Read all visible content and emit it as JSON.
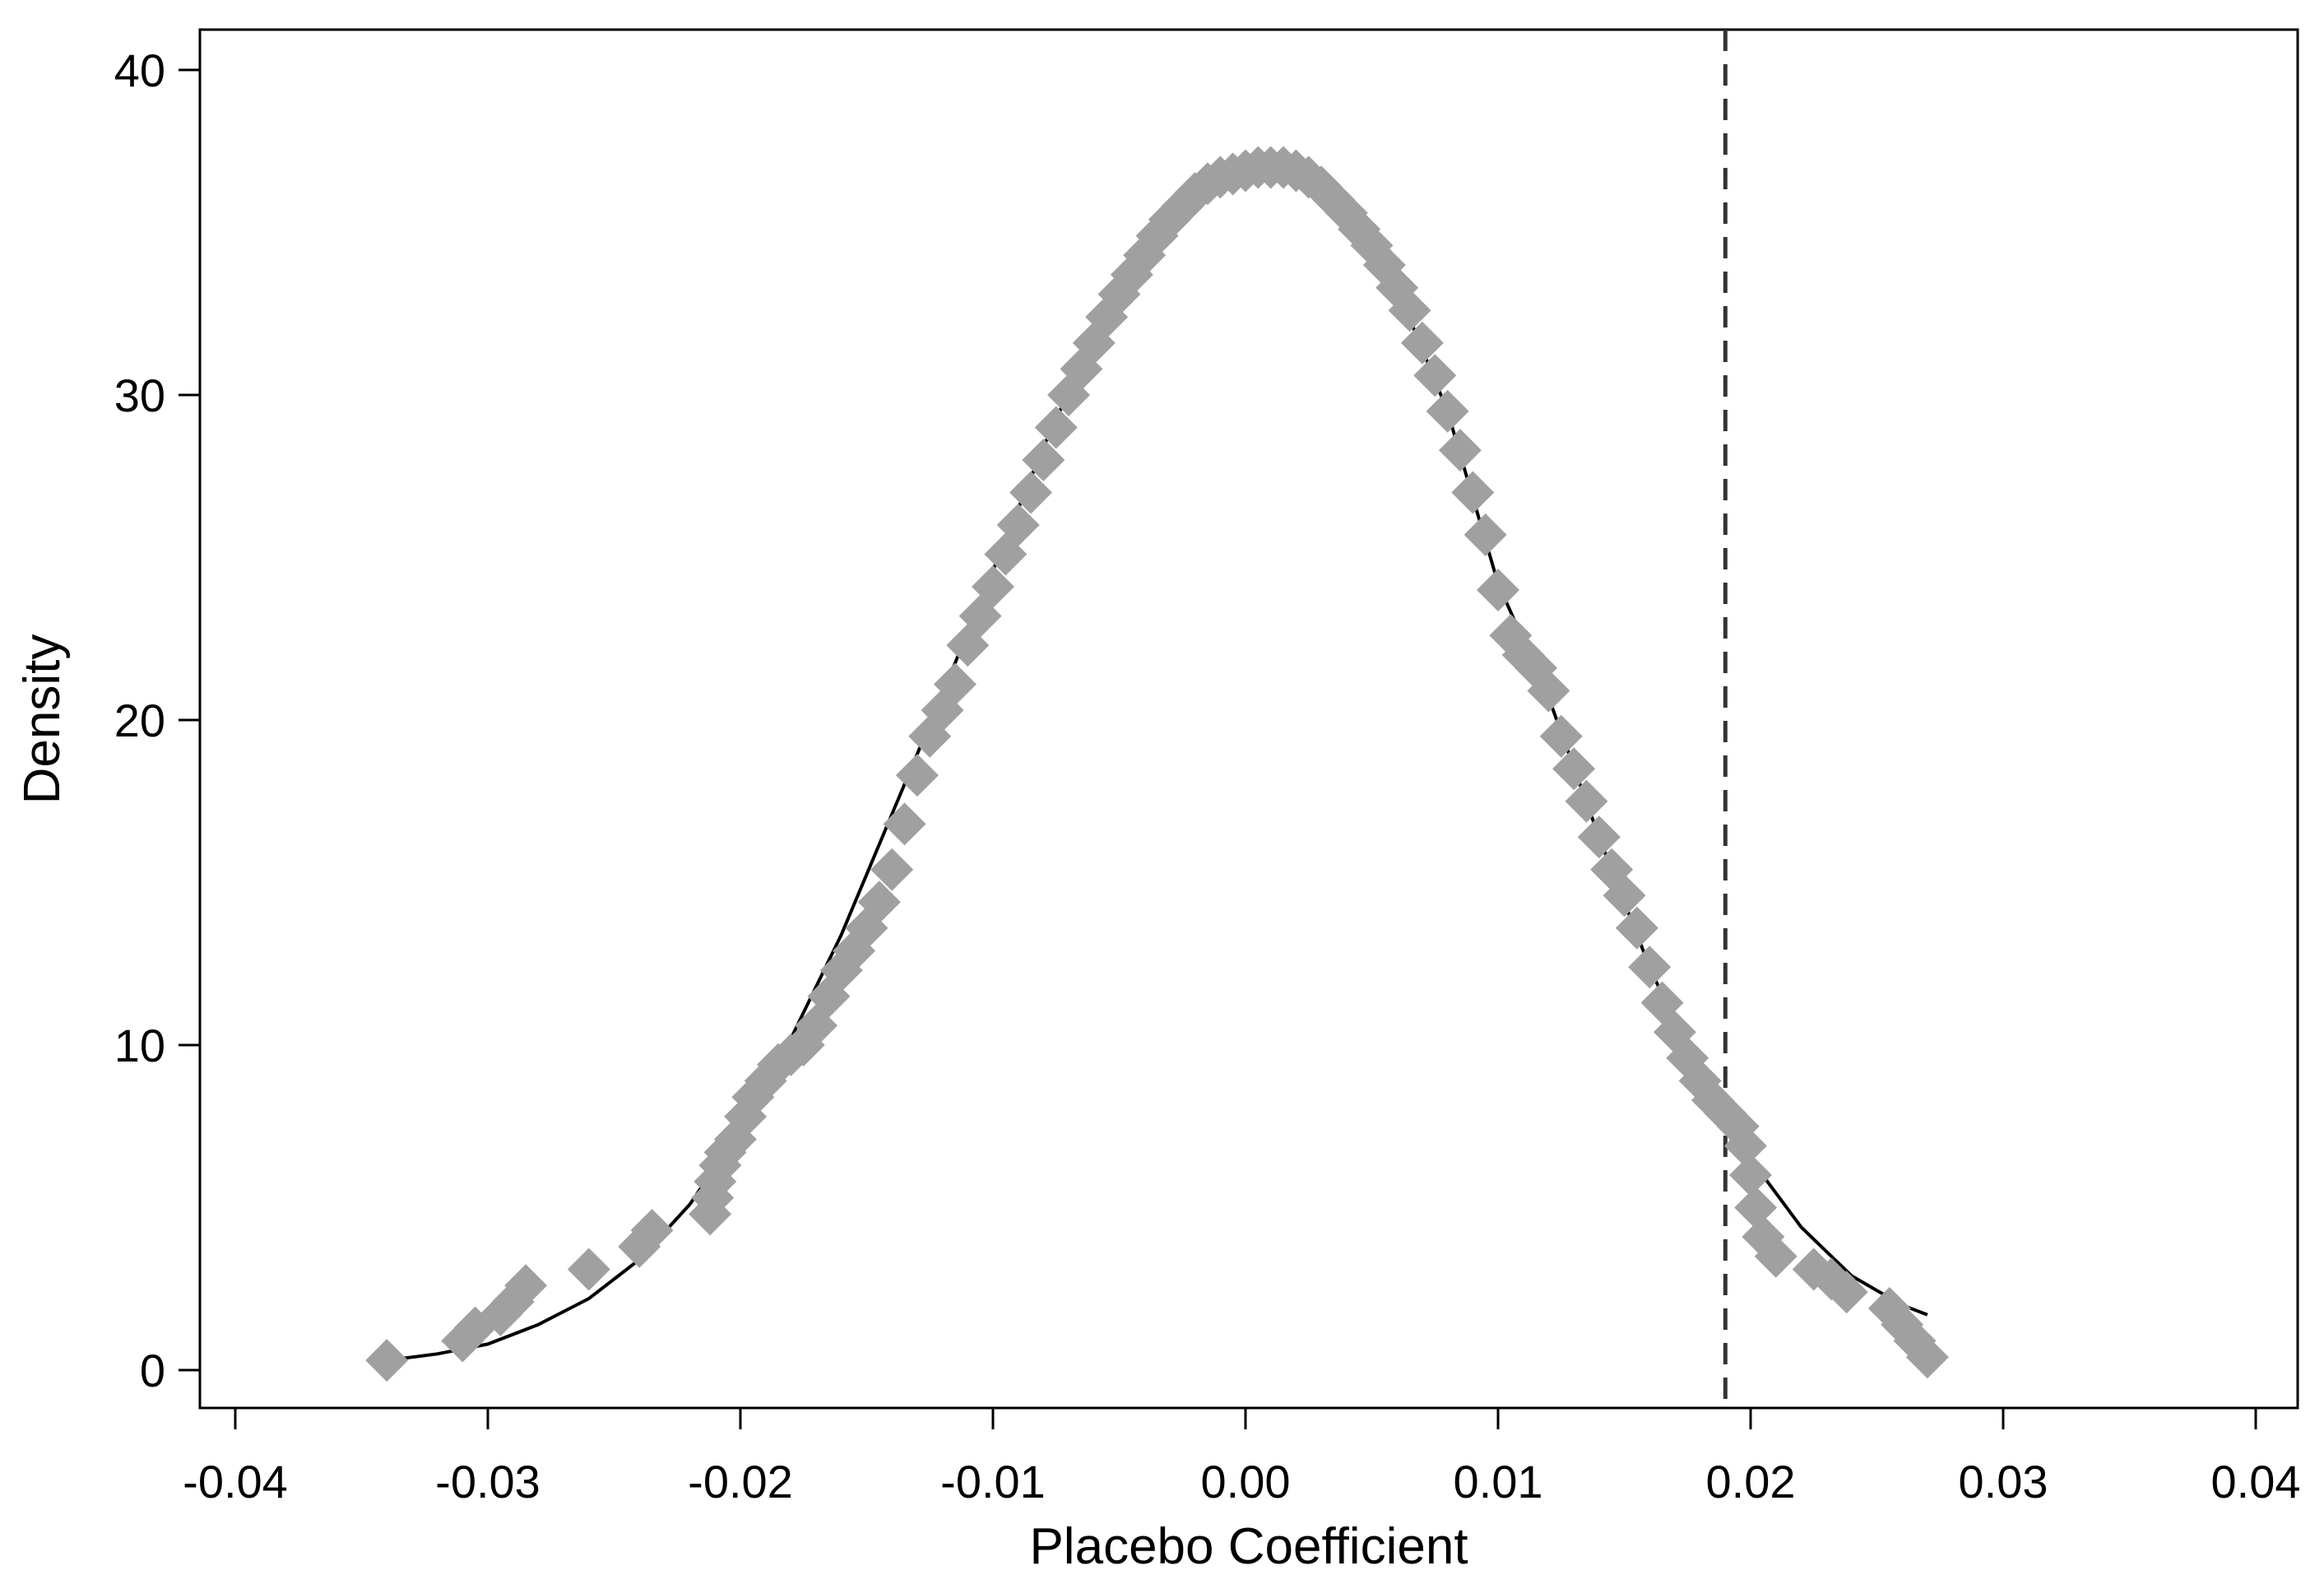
{
  "chart_data": {
    "type": "scatter",
    "xlabel": "Placebo Coefficient",
    "ylabel": "Density",
    "xlim": [
      -0.04,
      0.04
    ],
    "ylim": [
      0,
      40
    ],
    "xticks": [
      -0.04,
      -0.03,
      -0.02,
      -0.01,
      0.0,
      0.01,
      0.02,
      0.03,
      0.04
    ],
    "xtick_labels": [
      "-0.04",
      "-0.03",
      "-0.02",
      "-0.01",
      "0.00",
      "0.01",
      "0.02",
      "0.03",
      "0.04"
    ],
    "yticks": [
      0,
      10,
      20,
      30,
      40
    ],
    "ytick_labels": [
      "0",
      "10",
      "20",
      "30",
      "40"
    ],
    "grid": false,
    "reference_line": {
      "x": 0.019,
      "style": "dashed",
      "color": "#333333"
    },
    "series": [
      {
        "kind": "scatter",
        "marker": "diamond",
        "color": "#a0a0a0",
        "points": [
          [
            -0.034,
            0.3
          ],
          [
            -0.031,
            0.9
          ],
          [
            -0.0305,
            1.3
          ],
          [
            -0.0295,
            1.7
          ],
          [
            -0.029,
            2.1
          ],
          [
            -0.0285,
            2.6
          ],
          [
            -0.026,
            3.1
          ],
          [
            -0.024,
            3.8
          ],
          [
            -0.0235,
            4.3
          ],
          [
            -0.0212,
            4.8
          ],
          [
            -0.0211,
            5.3
          ],
          [
            -0.021,
            5.8
          ],
          [
            -0.0208,
            6.3
          ],
          [
            -0.0206,
            6.7
          ],
          [
            -0.0202,
            7.1
          ],
          [
            -0.0198,
            7.8
          ],
          [
            -0.0195,
            8.4
          ],
          [
            -0.019,
            8.9
          ],
          [
            -0.0185,
            9.4
          ],
          [
            -0.018,
            9.7
          ],
          [
            -0.0175,
            10.0
          ],
          [
            -0.017,
            10.6
          ],
          [
            -0.0165,
            11.5
          ],
          [
            -0.016,
            12.3
          ],
          [
            -0.0155,
            12.9
          ],
          [
            -0.015,
            13.6
          ],
          [
            -0.0145,
            14.4
          ],
          [
            -0.014,
            15.4
          ],
          [
            -0.0135,
            16.8
          ],
          [
            -0.013,
            18.3
          ],
          [
            -0.0125,
            19.5
          ],
          [
            -0.012,
            20.3
          ],
          [
            -0.0115,
            21.1
          ],
          [
            -0.011,
            22.3
          ],
          [
            -0.0105,
            23.2
          ],
          [
            -0.01,
            24.1
          ],
          [
            -0.0095,
            25.1
          ],
          [
            -0.009,
            26.0
          ],
          [
            -0.0085,
            27.0
          ],
          [
            -0.008,
            28.0
          ],
          [
            -0.0075,
            29.0
          ],
          [
            -0.007,
            30.0
          ],
          [
            -0.0065,
            30.8
          ],
          [
            -0.006,
            31.6
          ],
          [
            -0.0055,
            32.4
          ],
          [
            -0.005,
            33.1
          ],
          [
            -0.0045,
            33.7
          ],
          [
            -0.004,
            34.3
          ],
          [
            -0.0035,
            34.9
          ],
          [
            -0.003,
            35.4
          ],
          [
            -0.0025,
            35.8
          ],
          [
            -0.002,
            36.2
          ],
          [
            -0.0015,
            36.5
          ],
          [
            -0.001,
            36.7
          ],
          [
            -0.0005,
            36.8
          ],
          [
            0.0,
            36.9
          ],
          [
            0.0005,
            37.0
          ],
          [
            0.001,
            37.0
          ],
          [
            0.0015,
            37.0
          ],
          [
            0.002,
            36.9
          ],
          [
            0.0025,
            36.7
          ],
          [
            0.003,
            36.4
          ],
          [
            0.0035,
            36.0
          ],
          [
            0.004,
            35.6
          ],
          [
            0.0045,
            35.1
          ],
          [
            0.005,
            34.6
          ],
          [
            0.0055,
            34.0
          ],
          [
            0.006,
            33.3
          ],
          [
            0.0065,
            32.6
          ],
          [
            0.007,
            31.6
          ],
          [
            0.0075,
            30.6
          ],
          [
            0.008,
            29.5
          ],
          [
            0.0085,
            28.3
          ],
          [
            0.009,
            27.0
          ],
          [
            0.0095,
            25.7
          ],
          [
            0.01,
            24.0
          ],
          [
            0.0105,
            22.6
          ],
          [
            0.011,
            22.0
          ],
          [
            0.0115,
            21.6
          ],
          [
            0.012,
            20.9
          ],
          [
            0.0125,
            19.5
          ],
          [
            0.013,
            18.5
          ],
          [
            0.0135,
            17.5
          ],
          [
            0.014,
            16.4
          ],
          [
            0.0145,
            15.4
          ],
          [
            0.015,
            14.6
          ],
          [
            0.0155,
            13.6
          ],
          [
            0.016,
            12.4
          ],
          [
            0.0165,
            11.3
          ],
          [
            0.017,
            10.4
          ],
          [
            0.0175,
            9.6
          ],
          [
            0.018,
            8.9
          ],
          [
            0.0185,
            8.3
          ],
          [
            0.019,
            7.9
          ],
          [
            0.0195,
            7.5
          ],
          [
            0.0198,
            6.9
          ],
          [
            0.02,
            6.0
          ],
          [
            0.0202,
            5.0
          ],
          [
            0.0205,
            4.1
          ],
          [
            0.021,
            3.5
          ],
          [
            0.0225,
            3.1
          ],
          [
            0.0232,
            2.8
          ],
          [
            0.0238,
            2.4
          ],
          [
            0.0255,
            1.9
          ],
          [
            0.026,
            1.4
          ],
          [
            0.0265,
            0.9
          ],
          [
            0.027,
            0.4
          ]
        ]
      },
      {
        "kind": "line",
        "color": "#000000",
        "points": [
          [
            -0.034,
            0.3
          ],
          [
            -0.032,
            0.5
          ],
          [
            -0.03,
            0.8
          ],
          [
            -0.028,
            1.4
          ],
          [
            -0.026,
            2.2
          ],
          [
            -0.024,
            3.4
          ],
          [
            -0.022,
            5.1
          ],
          [
            -0.02,
            7.4
          ],
          [
            -0.018,
            10.2
          ],
          [
            -0.016,
            13.4
          ],
          [
            -0.014,
            17.1
          ],
          [
            -0.012,
            20.8
          ],
          [
            -0.01,
            24.6
          ],
          [
            -0.008,
            28.4
          ],
          [
            -0.006,
            31.8
          ],
          [
            -0.004,
            34.4
          ],
          [
            -0.002,
            36.2
          ],
          [
            0.0,
            36.9
          ],
          [
            0.002,
            36.8
          ],
          [
            0.004,
            35.6
          ],
          [
            0.006,
            33.3
          ],
          [
            0.008,
            29.5
          ],
          [
            0.01,
            24.2
          ],
          [
            0.012,
            20.7
          ],
          [
            0.014,
            16.4
          ],
          [
            0.016,
            12.4
          ],
          [
            0.018,
            9.0
          ],
          [
            0.019,
            7.7
          ],
          [
            0.02,
            6.5
          ],
          [
            0.022,
            4.4
          ],
          [
            0.024,
            2.9
          ],
          [
            0.026,
            2.0
          ],
          [
            0.027,
            1.7
          ]
        ]
      }
    ]
  }
}
